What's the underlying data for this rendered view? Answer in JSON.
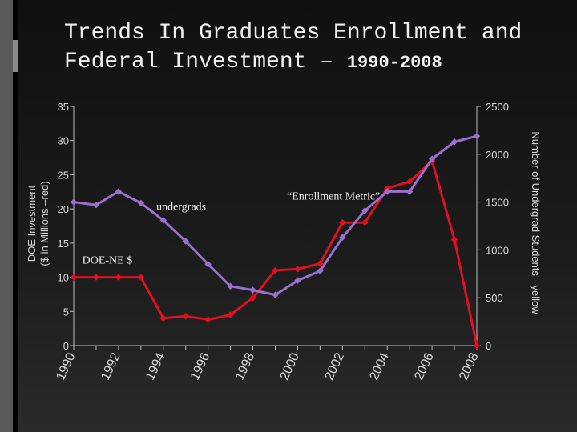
{
  "slide": {
    "title_main_line1": "Trends In Graduates Enrollment and",
    "title_main_line2": "Federal Investment – ",
    "title_years": "1990-2008"
  },
  "chart_data": {
    "type": "line",
    "x": [
      1990,
      1991,
      1992,
      1993,
      1994,
      1995,
      1996,
      1997,
      1998,
      1999,
      2000,
      2001,
      2002,
      2003,
      2004,
      2005,
      2006,
      2007,
      2008
    ],
    "x_ticks": [
      "1990",
      "1992",
      "1994",
      "1996",
      "1998",
      "2000",
      "2002",
      "2004",
      "2006",
      "2008"
    ],
    "ylabel_left": "DOE Investment ($ in Millions –red)",
    "ylabel_left_line1": "DOE Investment",
    "ylabel_left_line2": "($ in Millions –red)",
    "ylabel_right": "Number of Undergrad Students - yellow",
    "ylim_left": [
      0,
      35
    ],
    "yticks_left": [
      0,
      5,
      10,
      15,
      20,
      25,
      30,
      35
    ],
    "ylim_right": [
      0,
      2500
    ],
    "yticks_right": [
      0,
      500,
      1000,
      1500,
      2000,
      2500
    ],
    "series": [
      {
        "axis": "left",
        "color": "#e01020",
        "values": [
          10,
          10,
          10,
          10,
          4,
          4.3,
          3.8,
          4.5,
          7,
          11,
          11.2,
          12,
          18,
          18,
          23,
          24,
          27,
          15.5,
          0
        ]
      },
      {
        "axis": "right",
        "color": "#9a6fd0",
        "values": [
          1500,
          1470,
          1610,
          1490,
          1310,
          1090,
          850,
          620,
          580,
          530,
          680,
          780,
          1130,
          1410,
          1610,
          1610,
          1950,
          2130,
          2190
        ]
      }
    ],
    "annotations": [
      {
        "text": "“Enrollment Metric”",
        "x": 2001.6,
        "y_right": 1560
      },
      {
        "text": "undergrads",
        "x": 1994.8,
        "y_right": 1450
      },
      {
        "text": "DOE-NE $",
        "x": 1991.5,
        "y_right": 890
      }
    ],
    "grid": false
  }
}
